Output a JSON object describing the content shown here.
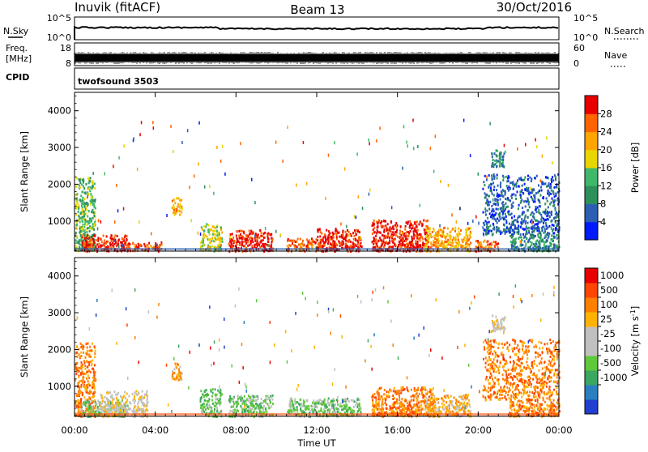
{
  "header": {
    "station": "Inuvik (fitACF)",
    "beam": "Beam 13",
    "date": "30/Oct/2016"
  },
  "strip_nsky": {
    "left_label": "N.Sky",
    "left_ticks": [
      "10^5",
      "10^0"
    ],
    "right_label": "N.Search",
    "right_ticks": [
      "10^5",
      "10^0"
    ]
  },
  "strip_freq": {
    "left_label_1": "Freq.",
    "left_label_2": "[MHz]",
    "left_ticks": [
      "18",
      "8"
    ],
    "right_label": "Nave",
    "right_ticks": [
      "60",
      "0"
    ]
  },
  "strip_cpid": {
    "label": "CPID",
    "value": "twofsound 3503"
  },
  "colors": {
    "power_scale": [
      "#0019ff",
      "#2a5fb4",
      "#2d8f5a",
      "#3fb86a",
      "#e8d600",
      "#ffa500",
      "#ff6400",
      "#e80000"
    ],
    "velocity_scale": [
      "#e80000",
      "#ff4500",
      "#ff7f00",
      "#ffb300",
      "#c0c0c0",
      "#c0c0c0",
      "#5fc93b",
      "#3aa860",
      "#2a7fbf",
      "#2040d0"
    ]
  },
  "chart_data": [
    {
      "type": "heatmap",
      "ylabel": "Slant Range [km]",
      "ylim": [
        180,
        4500
      ],
      "y_ticks": [
        1000,
        2000,
        3000,
        4000
      ],
      "xlim": [
        0,
        24
      ],
      "x_ticks": [
        0,
        4,
        8,
        12,
        16,
        20,
        24
      ],
      "colorbar": {
        "label": "Power [dB]",
        "ticks": [
          "4",
          "8",
          "12",
          "16",
          "20",
          "24",
          "28"
        ],
        "range": [
          0,
          30
        ]
      },
      "patches": [
        {
          "t0": 0.0,
          "t1": 1.0,
          "r0": 200,
          "r1": 2200,
          "c": 3
        },
        {
          "t0": 0.3,
          "t1": 2.6,
          "r0": 200,
          "r1": 650,
          "c": 7
        },
        {
          "t0": 2.6,
          "t1": 4.3,
          "r0": 200,
          "r1": 450,
          "c": 6
        },
        {
          "t0": 4.8,
          "t1": 5.3,
          "r0": 1200,
          "r1": 1650,
          "c": 5
        },
        {
          "t0": 6.2,
          "t1": 7.3,
          "r0": 200,
          "r1": 950,
          "c": 4
        },
        {
          "t0": 7.6,
          "t1": 9.8,
          "r0": 200,
          "r1": 780,
          "c": 7
        },
        {
          "t0": 10.5,
          "t1": 12.3,
          "r0": 200,
          "r1": 560,
          "c": 6
        },
        {
          "t0": 12.0,
          "t1": 14.2,
          "r0": 200,
          "r1": 820,
          "c": 7
        },
        {
          "t0": 14.7,
          "t1": 17.5,
          "r0": 200,
          "r1": 1050,
          "c": 7
        },
        {
          "t0": 17.3,
          "t1": 19.6,
          "r0": 200,
          "r1": 850,
          "c": 5
        },
        {
          "t0": 19.8,
          "t1": 21.0,
          "r0": 200,
          "r1": 500,
          "c": 6
        },
        {
          "t0": 20.2,
          "t1": 24.0,
          "r0": 650,
          "r1": 2300,
          "c": 1
        },
        {
          "t0": 20.6,
          "t1": 21.3,
          "r0": 2500,
          "r1": 2950,
          "c": 2
        },
        {
          "t0": 21.5,
          "t1": 24.0,
          "r0": 200,
          "r1": 650,
          "c": 2
        }
      ]
    },
    {
      "type": "heatmap",
      "ylabel": "Slant Range [km]",
      "xlabel": "Time UT",
      "ylim": [
        180,
        4500
      ],
      "y_ticks": [
        1000,
        2000,
        3000,
        4000
      ],
      "xlim": [
        0,
        24
      ],
      "x_ticks": [
        0,
        4,
        8,
        12,
        16,
        20,
        24
      ],
      "x_tick_labels": [
        "00:00",
        "04:00",
        "08:00",
        "12:00",
        "16:00",
        "20:00",
        "00:00"
      ],
      "colorbar": {
        "label": "Velocity [m s",
        "label_exponent": "-1",
        "label_close": "]",
        "ticks": [
          "1000",
          "500",
          "100",
          "25",
          "-25",
          "-100",
          "-500",
          "-1000"
        ]
      },
      "patches": [
        {
          "t0": 0.0,
          "t1": 1.0,
          "r0": 200,
          "r1": 2200,
          "c": 2
        },
        {
          "t0": 0.3,
          "t1": 2.6,
          "r0": 200,
          "r1": 650,
          "c": 6
        },
        {
          "t0": 1.2,
          "t1": 3.6,
          "r0": 200,
          "r1": 900,
          "c": 4
        },
        {
          "t0": 4.8,
          "t1": 5.3,
          "r0": 1200,
          "r1": 1650,
          "c": 3
        },
        {
          "t0": 6.2,
          "t1": 7.3,
          "r0": 200,
          "r1": 950,
          "c": 6
        },
        {
          "t0": 7.6,
          "t1": 9.8,
          "r0": 200,
          "r1": 780,
          "c": 6
        },
        {
          "t0": 10.5,
          "t1": 14.2,
          "r0": 200,
          "r1": 700,
          "c": 6
        },
        {
          "t0": 14.7,
          "t1": 17.8,
          "r0": 200,
          "r1": 1000,
          "c": 2
        },
        {
          "t0": 17.3,
          "t1": 19.6,
          "r0": 200,
          "r1": 800,
          "c": 3
        },
        {
          "t0": 20.2,
          "t1": 24.0,
          "r0": 650,
          "r1": 2300,
          "c": 2
        },
        {
          "t0": 20.6,
          "t1": 21.3,
          "r0": 2500,
          "r1": 2950,
          "c": 4
        },
        {
          "t0": 21.5,
          "t1": 24.0,
          "r0": 200,
          "r1": 650,
          "c": 2
        }
      ]
    }
  ]
}
